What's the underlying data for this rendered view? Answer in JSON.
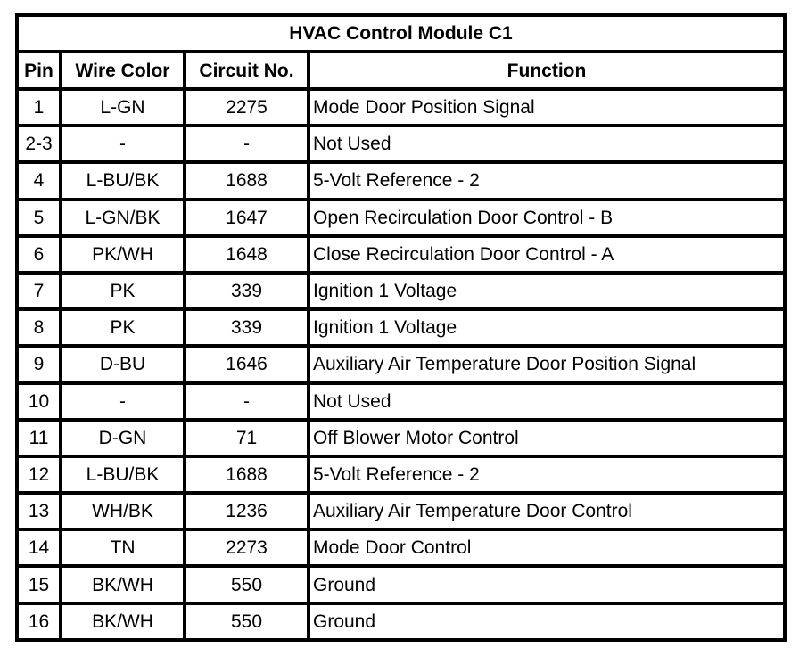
{
  "title": "HVAC Control Module C1",
  "headers": {
    "pin": "Pin",
    "wire_color": "Wire Color",
    "circuit": "Circuit No.",
    "function": "Function"
  },
  "rows": [
    {
      "pin": "1",
      "wire_color": "L-GN",
      "circuit": "2275",
      "function": "Mode Door Position Signal"
    },
    {
      "pin": "2-3",
      "wire_color": "-",
      "circuit": "-",
      "function": "Not Used"
    },
    {
      "pin": "4",
      "wire_color": "L-BU/BK",
      "circuit": "1688",
      "function": "5-Volt Reference - 2"
    },
    {
      "pin": "5",
      "wire_color": "L-GN/BK",
      "circuit": "1647",
      "function": "Open Recirculation Door Control - B"
    },
    {
      "pin": "6",
      "wire_color": "PK/WH",
      "circuit": "1648",
      "function": "Close Recirculation Door Control - A"
    },
    {
      "pin": "7",
      "wire_color": "PK",
      "circuit": "339",
      "function": "Ignition 1 Voltage"
    },
    {
      "pin": "8",
      "wire_color": "PK",
      "circuit": "339",
      "function": "Ignition 1 Voltage"
    },
    {
      "pin": "9",
      "wire_color": "D-BU",
      "circuit": "1646",
      "function": "Auxiliary Air Temperature Door Position Signal"
    },
    {
      "pin": "10",
      "wire_color": "-",
      "circuit": "-",
      "function": "Not Used"
    },
    {
      "pin": "11",
      "wire_color": "D-GN",
      "circuit": "71",
      "function": "Off Blower Motor Control"
    },
    {
      "pin": "12",
      "wire_color": "L-BU/BK",
      "circuit": "1688",
      "function": "5-Volt Reference - 2"
    },
    {
      "pin": "13",
      "wire_color": "WH/BK",
      "circuit": "1236",
      "function": "Auxiliary Air Temperature Door Control"
    },
    {
      "pin": "14",
      "wire_color": "TN",
      "circuit": "2273",
      "function": "Mode Door Control"
    },
    {
      "pin": "15",
      "wire_color": "BK/WH",
      "circuit": "550",
      "function": "Ground"
    },
    {
      "pin": "16",
      "wire_color": "BK/WH",
      "circuit": "550",
      "function": "Ground"
    }
  ]
}
